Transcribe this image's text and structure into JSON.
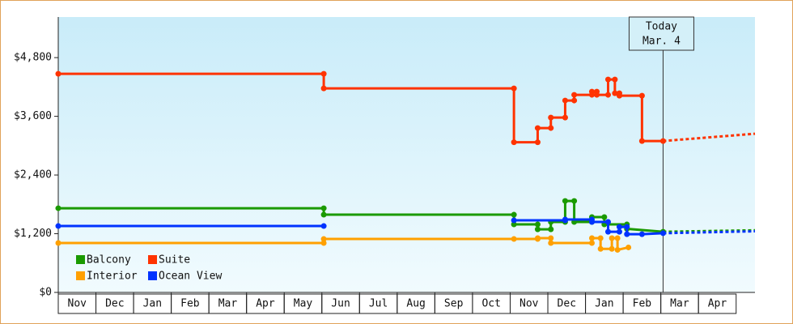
{
  "chart_data": {
    "type": "line",
    "ylim": [
      0,
      5630
    ],
    "yticks": [
      {
        "value": 0,
        "label": "$0"
      },
      {
        "value": 1200,
        "label": "$1,200"
      },
      {
        "value": 2400,
        "label": "$2,400"
      },
      {
        "value": 3600,
        "label": "$3,600"
      },
      {
        "value": 4800,
        "label": "$4,800"
      }
    ],
    "xlim": [
      0,
      18.5
    ],
    "xticks": [
      {
        "value": 0,
        "label": "Nov"
      },
      {
        "value": 1,
        "label": "Dec"
      },
      {
        "value": 2,
        "label": "Jan"
      },
      {
        "value": 3,
        "label": "Feb"
      },
      {
        "value": 4,
        "label": "Mar"
      },
      {
        "value": 5,
        "label": "Apr"
      },
      {
        "value": 6,
        "label": "May"
      },
      {
        "value": 7,
        "label": "Jun"
      },
      {
        "value": 8,
        "label": "Jul"
      },
      {
        "value": 9,
        "label": "Aug"
      },
      {
        "value": 10,
        "label": "Sep"
      },
      {
        "value": 11,
        "label": "Oct"
      },
      {
        "value": 12,
        "label": "Nov"
      },
      {
        "value": 13,
        "label": "Dec"
      },
      {
        "value": 14,
        "label": "Jan"
      },
      {
        "value": 15,
        "label": "Feb"
      },
      {
        "value": 16,
        "label": "Mar"
      },
      {
        "value": 17,
        "label": "Apr"
      }
    ],
    "annotation": {
      "x": 16.06,
      "lines": [
        "Today",
        "Mar. 4"
      ]
    },
    "series": [
      {
        "name": "Balcony",
        "color": "#1a9a00",
        "x": [
          0,
          7.05,
          7.05,
          12.1,
          12.1,
          12.73,
          12.73,
          13.08,
          13.08,
          13.46,
          13.46,
          13.7,
          13.7,
          14.17,
          14.17,
          14.5,
          14.5,
          15.1,
          15.1,
          16.06
        ],
        "values": [
          1721,
          1721,
          1589,
          1589,
          1390,
          1390,
          1290,
          1290,
          1440,
          1440,
          1870,
          1870,
          1440,
          1440,
          1540,
          1540,
          1390,
          1390,
          1300,
          1240
        ],
        "forecast": {
          "x": [
            16.06,
            18.5
          ],
          "values": [
            1240,
            1270
          ]
        }
      },
      {
        "name": "Suite",
        "color": "#ff3300",
        "x": [
          0,
          7.05,
          7.05,
          12.1,
          12.1,
          12.73,
          12.73,
          13.08,
          13.08,
          13.46,
          13.46,
          13.7,
          13.7,
          14.17,
          14.17,
          14.3,
          14.3,
          14.6,
          14.6,
          14.78,
          14.78,
          14.9,
          14.9,
          15.5,
          15.5,
          16.06
        ],
        "values": [
          4469,
          4469,
          4171,
          4171,
          3070,
          3070,
          3360,
          3360,
          3575,
          3575,
          3923,
          3923,
          4039,
          4039,
          4105,
          4105,
          4039,
          4039,
          4353,
          4353,
          4072,
          4072,
          4022,
          4022,
          3095,
          3095
        ],
        "forecast": {
          "x": [
            16.06,
            18.5
          ],
          "values": [
            3095,
            3244
          ]
        }
      },
      {
        "name": "Interior",
        "color": "#ffa000",
        "x": [
          0,
          7.05,
          7.05,
          12.1,
          12.73,
          12.73,
          13.08,
          13.08,
          14.17,
          14.17,
          14.4,
          14.4,
          14.7,
          14.7,
          14.85,
          14.85,
          15.14
        ],
        "values": [
          1010,
          1010,
          1092,
          1092,
          1092,
          1110,
          1110,
          1010,
          1010,
          1110,
          1110,
          890,
          890,
          1110,
          1110,
          870,
          920
        ]
      },
      {
        "name": "Ocean View",
        "color": "#0033ff",
        "x": [
          0,
          7.05,
          9.5,
          12.1,
          13.46,
          13.46,
          14.17,
          14.17,
          14.6,
          14.6,
          14.9,
          14.9,
          15.1,
          15.1,
          15.5,
          16.06
        ],
        "values": [
          1357,
          1357,
          null,
          1473,
          1473,
          1490,
          1490,
          1440,
          1440,
          1240,
          1240,
          1340,
          1340,
          1190,
          1190,
          1210
        ],
        "forecast": {
          "x": [
            16.06,
            18.5
          ],
          "values": [
            1210,
            1250
          ]
        }
      }
    ]
  }
}
